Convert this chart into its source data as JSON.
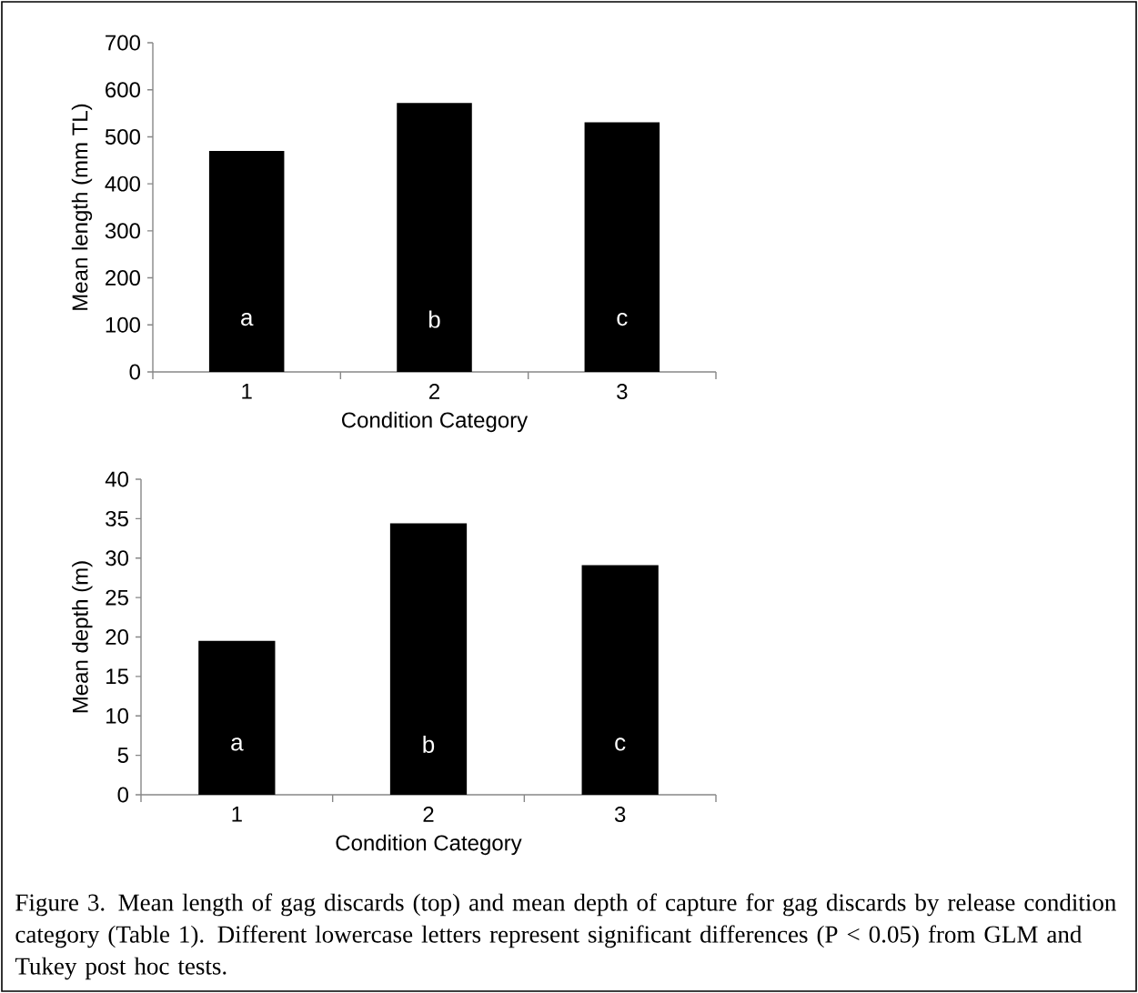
{
  "chart_data": [
    {
      "type": "bar",
      "ylabel": "Mean length (mm TL)",
      "xlabel": "Condition Category",
      "categories": [
        "1",
        "2",
        "3"
      ],
      "values": [
        470,
        572,
        531
      ],
      "color": "#000000",
      "ylim": [
        0,
        700
      ],
      "yticks": [
        0,
        100,
        200,
        300,
        400,
        500,
        600,
        700
      ],
      "annotations": [
        "a",
        "b",
        "c"
      ]
    },
    {
      "type": "bar",
      "ylabel": "Mean depth (m)",
      "xlabel": "Condition Category",
      "categories": [
        "1",
        "2",
        "3"
      ],
      "values": [
        19.5,
        34.4,
        29.1
      ],
      "color": "#000000",
      "ylim": [
        0,
        40
      ],
      "yticks": [
        0,
        5,
        10,
        15,
        20,
        25,
        30,
        35,
        40
      ],
      "annotations": [
        "a",
        "b",
        "c",
        "Figure 3. Mean length of gag discards (top) and mean depth of capture for gag discards by release condition category (Table 1). Different lowercase letters represent significant differences (P < 0.05) from GLM and Tukey post hoc tests."
      ]
    }
  ]
}
